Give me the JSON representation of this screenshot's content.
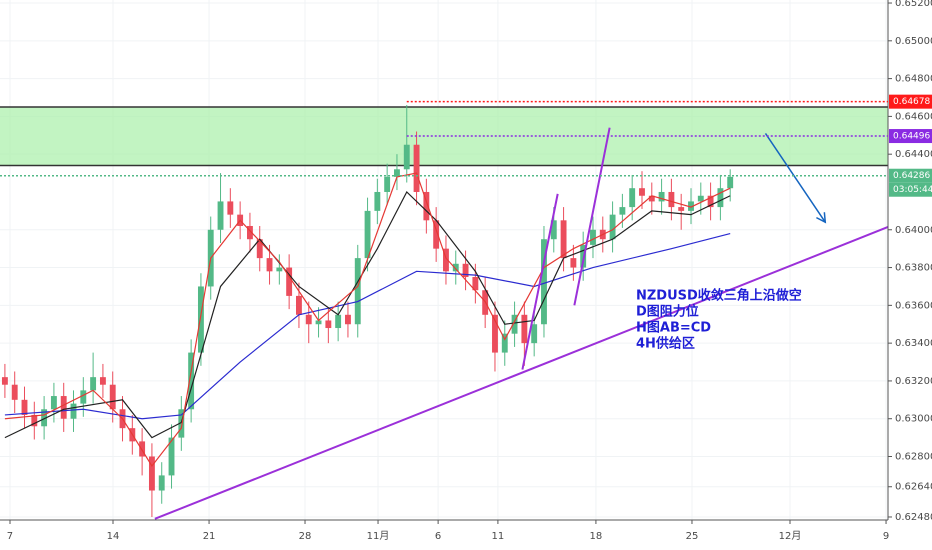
{
  "chart_data": {
    "type": "candlestick",
    "grid": true,
    "up_color": "#53b987",
    "down_color": "#eb4d5c",
    "ylim": [
      0.62464,
      0.65216
    ],
    "yticks": [
      {
        "value": 0.652,
        "label": "0.65200"
      },
      {
        "value": 0.65,
        "label": "0.65000"
      },
      {
        "value": 0.648,
        "label": "0.64800"
      },
      {
        "value": 0.646,
        "label": "0.64600"
      },
      {
        "value": 0.644,
        "label": "0.64400"
      },
      {
        "value": 0.64,
        "label": "0.64000"
      },
      {
        "value": 0.638,
        "label": "0.63800"
      },
      {
        "value": 0.636,
        "label": "0.63600"
      },
      {
        "value": 0.634,
        "label": "0.63400"
      },
      {
        "value": 0.632,
        "label": "0.63200"
      },
      {
        "value": 0.63,
        "label": "0.63000"
      },
      {
        "value": 0.628,
        "label": "0.62800"
      },
      {
        "value": 0.6264,
        "label": "0.62640"
      },
      {
        "value": 0.6248,
        "label": "0.62480"
      }
    ],
    "xlim": [
      -0.5,
      90.1
    ],
    "xticks": [
      {
        "value": 0.52,
        "label": "7"
      },
      {
        "value": 11.03,
        "label": "14"
      },
      {
        "value": 20.83,
        "label": "21"
      },
      {
        "value": 30.62,
        "label": "28"
      },
      {
        "value": 38.07,
        "label": "11月"
      },
      {
        "value": 44.2,
        "label": "6"
      },
      {
        "value": 50.3,
        "label": "11"
      },
      {
        "value": 60.3,
        "label": "18"
      },
      {
        "value": 70.1,
        "label": "25"
      },
      {
        "value": 80.1,
        "label": "12月"
      },
      {
        "value": 89.9,
        "label": "9"
      }
    ],
    "open": [
      0.6322,
      0.6318,
      0.631,
      0.6302,
      0.6296,
      0.6305,
      0.6312,
      0.63,
      0.6308,
      0.6315,
      0.6322,
      0.6318,
      0.6305,
      0.6295,
      0.6288,
      0.628,
      0.6262,
      0.627,
      0.629,
      0.6305,
      0.6335,
      0.637,
      0.64,
      0.6415,
      0.6408,
      0.6402,
      0.6395,
      0.6385,
      0.6378,
      0.638,
      0.6365,
      0.6355,
      0.635,
      0.6352,
      0.6348,
      0.6355,
      0.635,
      0.6385,
      0.641,
      0.642,
      0.6428,
      0.6432,
      0.6445,
      0.642,
      0.6405,
      0.639,
      0.6378,
      0.6382,
      0.6375,
      0.6368,
      0.6355,
      0.6335,
      0.6345,
      0.6355,
      0.634,
      0.635,
      0.6395,
      0.6405,
      0.6385,
      0.638,
      0.6392,
      0.64,
      0.6395,
      0.6408,
      0.6412,
      0.6422,
      0.6418,
      0.6415,
      0.642,
      0.6412,
      0.641,
      0.6415,
      0.6418,
      0.6412,
      0.6422
    ],
    "high": [
      0.6329,
      0.6325,
      0.6317,
      0.6309,
      0.6312,
      0.6319,
      0.6319,
      0.6315,
      0.6322,
      0.6335,
      0.6329,
      0.6325,
      0.6312,
      0.6302,
      0.6295,
      0.6287,
      0.6277,
      0.6297,
      0.6312,
      0.6342,
      0.6377,
      0.6407,
      0.643,
      0.6422,
      0.6415,
      0.6409,
      0.6402,
      0.6392,
      0.6387,
      0.6387,
      0.6372,
      0.6362,
      0.6359,
      0.6359,
      0.6362,
      0.6362,
      0.6392,
      0.6417,
      0.6427,
      0.6435,
      0.644,
      0.6466,
      0.6452,
      0.6427,
      0.6412,
      0.6397,
      0.6389,
      0.6389,
      0.6382,
      0.6375,
      0.6362,
      0.6352,
      0.6362,
      0.6362,
      0.6357,
      0.6402,
      0.6412,
      0.6412,
      0.6392,
      0.6399,
      0.6407,
      0.6407,
      0.6415,
      0.6419,
      0.6429,
      0.6431,
      0.6425,
      0.6427,
      0.6427,
      0.6419,
      0.6422,
      0.6425,
      0.6425,
      0.6429,
      0.6432
    ],
    "low": [
      0.6311,
      0.6303,
      0.6295,
      0.6289,
      0.6289,
      0.6298,
      0.6293,
      0.6293,
      0.6301,
      0.6308,
      0.6311,
      0.6298,
      0.6288,
      0.6281,
      0.627,
      0.6248,
      0.6255,
      0.6263,
      0.6283,
      0.6298,
      0.6328,
      0.6363,
      0.6393,
      0.6401,
      0.6395,
      0.6388,
      0.6378,
      0.6371,
      0.6371,
      0.6358,
      0.6348,
      0.634,
      0.6343,
      0.634,
      0.6341,
      0.6343,
      0.6343,
      0.6378,
      0.6403,
      0.6413,
      0.6421,
      0.6425,
      0.6413,
      0.6398,
      0.6383,
      0.6371,
      0.6371,
      0.6368,
      0.6361,
      0.6348,
      0.6325,
      0.6328,
      0.6338,
      0.6328,
      0.6333,
      0.6343,
      0.6388,
      0.6378,
      0.6373,
      0.6373,
      0.6385,
      0.6388,
      0.6388,
      0.6401,
      0.6405,
      0.6411,
      0.6408,
      0.6408,
      0.6405,
      0.64,
      0.6403,
      0.6408,
      0.6405,
      0.6405,
      0.6415
    ],
    "close": [
      0.6318,
      0.631,
      0.6302,
      0.6296,
      0.6305,
      0.6312,
      0.63,
      0.6308,
      0.6315,
      0.6322,
      0.6318,
      0.6305,
      0.6295,
      0.6288,
      0.628,
      0.6262,
      0.627,
      0.629,
      0.6305,
      0.6335,
      0.637,
      0.64,
      0.6415,
      0.6408,
      0.6402,
      0.6395,
      0.6385,
      0.6378,
      0.638,
      0.6365,
      0.6355,
      0.635,
      0.6352,
      0.6348,
      0.6355,
      0.635,
      0.6385,
      0.641,
      0.642,
      0.6428,
      0.6432,
      0.6445,
      0.642,
      0.6405,
      0.639,
      0.6378,
      0.6382,
      0.6375,
      0.6368,
      0.6355,
      0.6335,
      0.6345,
      0.6355,
      0.634,
      0.635,
      0.6395,
      0.6405,
      0.6385,
      0.638,
      0.6392,
      0.64,
      0.6395,
      0.6408,
      0.6412,
      0.6422,
      0.6418,
      0.6415,
      0.642,
      0.6412,
      0.641,
      0.6415,
      0.6418,
      0.6412,
      0.6422,
      0.6428
    ],
    "series": [
      {
        "color": "#2b2bd0",
        "x": [
          0,
          8,
          14,
          18,
          24,
          30,
          36,
          42,
          48,
          54,
          60,
          68,
          74
        ],
        "values": [
          0.6302,
          0.6305,
          0.63,
          0.6302,
          0.633,
          0.6355,
          0.6362,
          0.6378,
          0.6376,
          0.637,
          0.638,
          0.639,
          0.6398
        ]
      },
      {
        "color": "#222222",
        "x": [
          0,
          6,
          12,
          15,
          18,
          22,
          26,
          30,
          34,
          38,
          41,
          44,
          48,
          51,
          54,
          57,
          62,
          66,
          70,
          74
        ],
        "values": [
          0.629,
          0.6305,
          0.631,
          0.629,
          0.6298,
          0.637,
          0.6395,
          0.637,
          0.6355,
          0.639,
          0.642,
          0.6405,
          0.6378,
          0.635,
          0.6352,
          0.6385,
          0.6395,
          0.641,
          0.6408,
          0.6418
        ]
      },
      {
        "color": "#e53935",
        "x": [
          0,
          4,
          9,
          12,
          15,
          18,
          21,
          24,
          28,
          32,
          36,
          40,
          42,
          45,
          49,
          51,
          55,
          58,
          62,
          66,
          70,
          74
        ],
        "values": [
          0.63,
          0.6302,
          0.6315,
          0.63,
          0.6275,
          0.6295,
          0.6385,
          0.6405,
          0.6383,
          0.6352,
          0.637,
          0.6428,
          0.643,
          0.6385,
          0.6362,
          0.6342,
          0.638,
          0.639,
          0.64,
          0.6418,
          0.6412,
          0.6422
        ]
      }
    ],
    "zone": {
      "low": 0.6434,
      "high": 0.6465,
      "color": "#a8f0a8"
    },
    "lines": [
      {
        "color": "#9b30d9",
        "x": [
          15.3,
          90.1
        ],
        "values": [
          0.6247,
          0.64015
        ]
      },
      {
        "color": "#9b30d9",
        "x": [
          52.8,
          56.4
        ],
        "values": [
          0.6326,
          0.6419
        ]
      },
      {
        "color": "#9b30d9",
        "x": [
          58.1,
          61.7
        ],
        "values": [
          0.636,
          0.6454
        ]
      }
    ],
    "arrow": {
      "color": "#1565c0",
      "x": [
        77.6,
        83.7
      ],
      "values": [
        0.6451,
        0.6404
      ]
    },
    "price_tags": [
      {
        "price": 0.64678,
        "color": "#ff1a1a",
        "from": 41.0
      },
      {
        "price": 0.64496,
        "color": "#8a2be2",
        "from": 41.0
      },
      {
        "price": 0.64286,
        "color": "#53b987",
        "from": -0.5,
        "countdown": "03:05:44"
      }
    ],
    "annotations": [
      "NZDUSD收敛三角上沿做空",
      "D图阻力位",
      "H图AB=CD",
      "4H供给区"
    ]
  }
}
